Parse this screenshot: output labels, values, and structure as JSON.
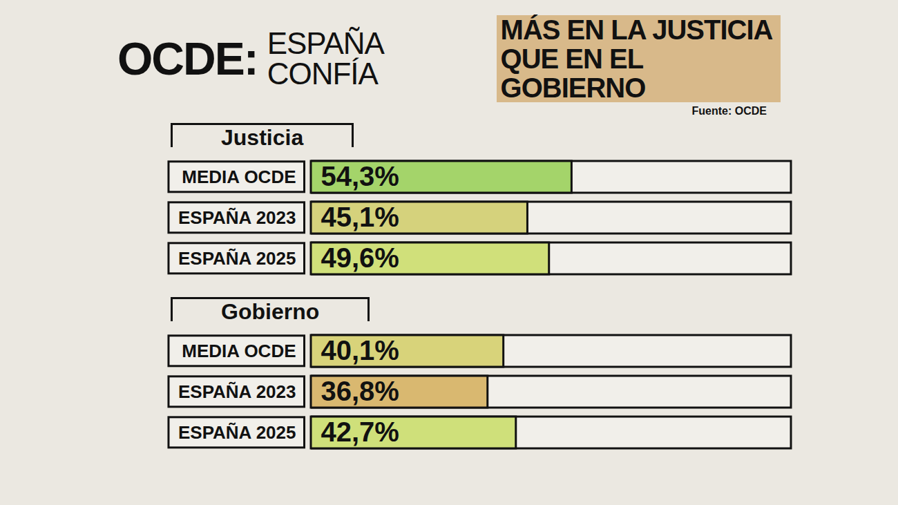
{
  "header": {
    "title": [
      "OCDE:",
      "ESPAÑA CONFÍA",
      "MÁS EN LA JUSTICIA",
      "QUE EN EL GOBIERNO"
    ],
    "source": "Fuente: OCDE"
  },
  "chart_data": [
    {
      "type": "bar",
      "orientation": "horizontal",
      "title": "Justicia",
      "categories": [
        "MEDIA OCDE",
        "ESPAÑA 2023",
        "ESPAÑA 2025"
      ],
      "values": [
        54.3,
        45.1,
        49.6
      ],
      "value_labels": [
        "54,3%",
        "45,1%",
        "49,6%"
      ],
      "colors": [
        "#a4d46a",
        "#d5d27c",
        "#d0e07a"
      ],
      "xlim": [
        0,
        100
      ],
      "data_labels": true,
      "tick_labels": "y",
      "grid": false
    },
    {
      "type": "bar",
      "orientation": "horizontal",
      "title": "Gobierno",
      "categories": [
        "MEDIA OCDE",
        "ESPAÑA 2023",
        "ESPAÑA 2025"
      ],
      "values": [
        40.1,
        36.8,
        42.7
      ],
      "value_labels": [
        "40,1%",
        "36,8%",
        "42,7%"
      ],
      "colors": [
        "#d8d37a",
        "#d9b870",
        "#cfe07a"
      ],
      "xlim": [
        0,
        100
      ],
      "data_labels": true,
      "tick_labels": "y",
      "grid": false
    }
  ]
}
